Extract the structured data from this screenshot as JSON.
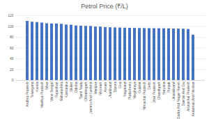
{
  "chart_data": {
    "type": "bar",
    "title": "Petrol Price (₹/L)",
    "categories": [
      "Andhra Pradesh",
      "Telangana",
      "Kerala",
      "Madhya Pradesh",
      "Bihar",
      "West Bengal",
      "Rajasthan",
      "Maharashtra",
      "Karnataka",
      "Sikkim",
      "Odisha",
      "Tamil Nadu",
      "Chhattisgarh",
      "Jammu And Kashmir",
      "Manipur",
      "Mizoram",
      "Assam",
      "Jharkhand",
      "Tripura",
      "Goa",
      "Nagaland",
      "Puducherry",
      "Meghalaya",
      "Gujarat",
      "Himachal Pradesh",
      "Delhi",
      "Uttar Pradesh",
      "Chandigarh",
      "Haryana",
      "Punjab",
      "Uttarakhand",
      "Dadra And Nagar Haveli",
      "Daman And Diu",
      "Arunachal Pradesh",
      "Andaman And Nicobar"
    ],
    "values": [
      109.6,
      108.1,
      107.5,
      106.5,
      105.2,
      104.9,
      104.8,
      104.2,
      102.9,
      102.5,
      101.1,
      100.8,
      100.4,
      100.2,
      99.1,
      99.0,
      98.2,
      97.8,
      97.5,
      97.3,
      97.0,
      96.8,
      96.6,
      96.4,
      96.3,
      96.2,
      96.1,
      96.0,
      95.9,
      95.8,
      95.4,
      95.3,
      95.2,
      94.6,
      84.1
    ],
    "color": "#4472c4",
    "ylim": [
      0,
      120
    ],
    "yticks": [
      0,
      20,
      40,
      60,
      80,
      100,
      120
    ],
    "grid": true
  }
}
